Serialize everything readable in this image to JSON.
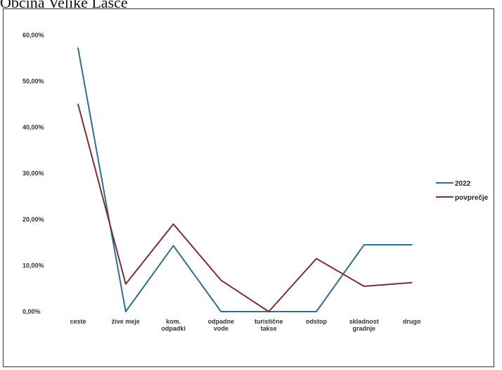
{
  "page": {
    "title": "Občina Velike Lašče"
  },
  "chart_data": {
    "type": "line",
    "categories": [
      "ceste",
      "žive meje",
      "kom. odpadki",
      "odpadne vode",
      "turistične takse",
      "odstop",
      "skladnost gradnje",
      "drugo"
    ],
    "category_lines": [
      [
        "ceste"
      ],
      [
        "žive meje"
      ],
      [
        "kom.",
        "odpadki"
      ],
      [
        "odpadne",
        "vode"
      ],
      [
        "turistične",
        "takse"
      ],
      [
        "odstop"
      ],
      [
        "skladnost",
        "gradnje"
      ],
      [
        "drugo"
      ]
    ],
    "series": [
      {
        "name": "2022",
        "color": "#2e6e8e",
        "values": [
          57.2,
          0.0,
          14.3,
          0.0,
          0.0,
          0.0,
          14.5,
          14.5
        ]
      },
      {
        "name": "povprečje",
        "color": "#7a2e3a",
        "values": [
          45.0,
          6.0,
          19.0,
          6.8,
          0.0,
          11.5,
          5.5,
          6.3
        ]
      }
    ],
    "ylim": [
      0,
      60
    ],
    "yticks": [
      "0,00%",
      "10,00%",
      "20,00%",
      "30,00%",
      "40,00%",
      "50,00%",
      "60,00%"
    ],
    "legend_position": "right",
    "grid": false
  }
}
